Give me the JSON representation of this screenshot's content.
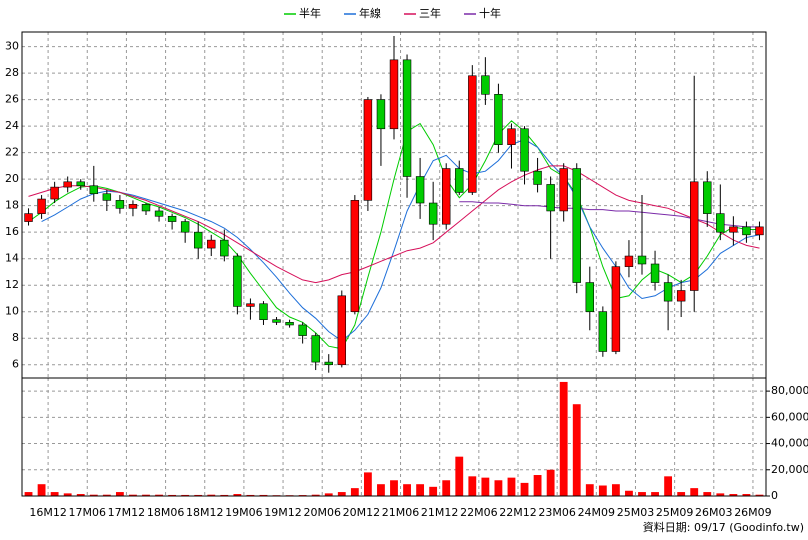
{
  "chart_data": {
    "type": "candlestick",
    "ylim": [
      5.0,
      31.1
    ],
    "yticks": [
      6,
      8,
      10,
      12,
      14,
      16,
      18,
      20,
      22,
      24,
      26,
      28,
      30
    ],
    "xlim": [
      -0.5,
      56.5
    ],
    "xticks": [
      {
        "value": 1.5,
        "label": "16M12"
      },
      {
        "value": 4.5,
        "label": "17M06"
      },
      {
        "value": 7.5,
        "label": "17M12"
      },
      {
        "value": 10.5,
        "label": "18M06"
      },
      {
        "value": 13.5,
        "label": "18M12"
      },
      {
        "value": 16.5,
        "label": "19M06"
      },
      {
        "value": 19.5,
        "label": "19M12"
      },
      {
        "value": 22.5,
        "label": "20M06"
      },
      {
        "value": 25.5,
        "label": "20M12"
      },
      {
        "value": 28.5,
        "label": "21M06"
      },
      {
        "value": 31.5,
        "label": "21M12"
      },
      {
        "value": 34.5,
        "label": "22M06"
      },
      {
        "value": 37.5,
        "label": "22M12"
      },
      {
        "value": 40.5,
        "label": "23M06"
      },
      {
        "value": 43.5,
        "label": "24M09"
      },
      {
        "value": 46.5,
        "label": "25M03"
      },
      {
        "value": 49.5,
        "label": "25M09"
      },
      {
        "value": 52.5,
        "label": "26M03"
      },
      {
        "value": 55.5,
        "label": "26M09"
      }
    ],
    "grid": true,
    "up_color": "#ff0000",
    "down_color": "#00cc00",
    "candles": [
      [
        16.8,
        17.8,
        16.5,
        17.4
      ],
      [
        17.4,
        18.8,
        17.0,
        18.5
      ],
      [
        18.5,
        19.8,
        18.2,
        19.4
      ],
      [
        19.4,
        20.2,
        19.0,
        19.8
      ],
      [
        19.8,
        20.0,
        19.2,
        19.5
      ],
      [
        19.5,
        21.0,
        18.3,
        18.9
      ],
      [
        18.9,
        19.2,
        17.6,
        18.4
      ],
      [
        18.4,
        18.8,
        17.4,
        17.8
      ],
      [
        17.8,
        18.4,
        17.2,
        18.1
      ],
      [
        18.1,
        18.2,
        17.3,
        17.6
      ],
      [
        17.6,
        17.9,
        16.8,
        17.2
      ],
      [
        17.2,
        17.4,
        16.2,
        16.8
      ],
      [
        16.8,
        17.0,
        15.2,
        16.0
      ],
      [
        16.0,
        16.8,
        14.0,
        14.8
      ],
      [
        14.8,
        15.8,
        14.2,
        15.4
      ],
      [
        15.4,
        16.2,
        13.8,
        14.2
      ],
      [
        14.2,
        14.4,
        9.8,
        10.4
      ],
      [
        10.4,
        11.0,
        9.4,
        10.6
      ],
      [
        10.6,
        10.8,
        9.0,
        9.4
      ],
      [
        9.4,
        9.6,
        9.0,
        9.2
      ],
      [
        9.2,
        9.4,
        8.8,
        9.0
      ],
      [
        9.0,
        9.2,
        7.6,
        8.2
      ],
      [
        8.2,
        8.4,
        5.6,
        6.2
      ],
      [
        6.2,
        6.8,
        5.4,
        6.0
      ],
      [
        6.0,
        11.6,
        5.8,
        11.2
      ],
      [
        10.0,
        18.8,
        9.8,
        18.4
      ],
      [
        18.4,
        26.2,
        17.6,
        26.0
      ],
      [
        26.0,
        26.4,
        21.0,
        23.8
      ],
      [
        23.8,
        30.8,
        23.0,
        29.0
      ],
      [
        29.0,
        29.4,
        18.6,
        20.2
      ],
      [
        20.2,
        21.6,
        17.0,
        18.2
      ],
      [
        18.2,
        19.8,
        15.4,
        16.6
      ],
      [
        16.6,
        21.2,
        16.2,
        20.8
      ],
      [
        20.8,
        21.4,
        18.8,
        19.0
      ],
      [
        19.0,
        28.6,
        18.8,
        27.8
      ],
      [
        27.8,
        29.2,
        25.6,
        26.4
      ],
      [
        26.4,
        27.2,
        22.0,
        22.6
      ],
      [
        22.6,
        24.2,
        20.8,
        23.8
      ],
      [
        23.8,
        24.0,
        19.6,
        20.6
      ],
      [
        20.6,
        21.6,
        19.0,
        19.6
      ],
      [
        19.6,
        20.2,
        14.0,
        17.6
      ],
      [
        17.6,
        21.2,
        16.8,
        20.8
      ],
      [
        20.8,
        21.2,
        11.4,
        12.2
      ],
      [
        12.2,
        13.4,
        8.6,
        10.0
      ],
      [
        10.0,
        10.4,
        6.6,
        7.0
      ],
      [
        7.0,
        13.8,
        6.8,
        13.4
      ],
      [
        13.4,
        15.4,
        12.6,
        14.2
      ],
      [
        14.2,
        18.8,
        12.8,
        13.6
      ],
      [
        13.6,
        14.6,
        11.6,
        12.2
      ],
      [
        12.2,
        12.8,
        8.6,
        10.8
      ],
      [
        10.8,
        12.4,
        9.6,
        11.6
      ],
      [
        11.6,
        27.8,
        10.0,
        19.8
      ],
      [
        19.8,
        20.6,
        16.4,
        17.4
      ],
      [
        17.4,
        19.6,
        15.4,
        16.0
      ],
      [
        16.0,
        17.2,
        15.0,
        16.4
      ],
      [
        16.4,
        16.8,
        15.2,
        15.8
      ],
      [
        15.8,
        16.8,
        15.4,
        16.4
      ]
    ],
    "lines": [
      {
        "name": "半年",
        "color": "#00cc00",
        "values": [
          16.8,
          17.5,
          18.3,
          18.9,
          19.4,
          19.5,
          19.3,
          19.0,
          18.6,
          18.2,
          17.9,
          17.5,
          17.1,
          16.6,
          16.0,
          15.4,
          14.3,
          12.9,
          11.6,
          10.3,
          9.6,
          9.2,
          8.4,
          7.4,
          7.2,
          9.0,
          12.6,
          16.0,
          20.0,
          23.6,
          24.2,
          22.6,
          20.0,
          18.6,
          19.6,
          21.4,
          23.4,
          24.4,
          23.6,
          22.4,
          20.8,
          20.2,
          18.8,
          16.4,
          13.4,
          11.0,
          11.2,
          12.4,
          13.2,
          12.8,
          12.2,
          12.8,
          14.2,
          15.8,
          16.4,
          16.2,
          16.2
        ]
      },
      {
        "name": "年線",
        "color": "#1e6fd9",
        "values": [
          null,
          16.8,
          17.3,
          17.9,
          18.5,
          18.9,
          19.1,
          19.0,
          18.8,
          18.5,
          18.2,
          17.9,
          17.6,
          17.2,
          16.8,
          16.3,
          15.6,
          14.7,
          13.7,
          12.6,
          11.4,
          10.3,
          9.5,
          8.5,
          7.8,
          8.6,
          9.8,
          11.8,
          14.6,
          17.6,
          19.6,
          21.4,
          21.8,
          20.8,
          20.4,
          20.6,
          21.4,
          22.6,
          23.0,
          22.4,
          21.2,
          20.2,
          18.6,
          16.4,
          14.8,
          13.4,
          11.8,
          11.0,
          11.2,
          11.8,
          12.2,
          12.4,
          13.2,
          14.4,
          15.0,
          15.6,
          15.8
        ]
      },
      {
        "name": "三年",
        "color": "#d6105a",
        "values": [
          18.7,
          19.0,
          19.3,
          19.5,
          19.5,
          19.4,
          19.2,
          19.0,
          18.7,
          18.4,
          18.0,
          17.6,
          17.2,
          16.8,
          16.3,
          15.8,
          15.2,
          14.6,
          14.0,
          13.4,
          12.9,
          12.4,
          12.2,
          12.4,
          12.8,
          13.0,
          13.4,
          13.8,
          14.2,
          14.6,
          14.8,
          15.2,
          16.0,
          16.8,
          17.6,
          18.4,
          19.2,
          19.8,
          20.3,
          20.7,
          21.0,
          21.0,
          20.6,
          20.0,
          19.4,
          18.8,
          18.4,
          18.2,
          18.0,
          17.8,
          17.4,
          17.0,
          16.6,
          16.0,
          15.4,
          15.0,
          14.8
        ]
      },
      {
        "name": "十年",
        "color": "#7a2aa8",
        "values": [
          null,
          null,
          null,
          null,
          null,
          null,
          null,
          null,
          null,
          null,
          null,
          null,
          null,
          null,
          null,
          null,
          null,
          null,
          null,
          null,
          null,
          null,
          null,
          null,
          null,
          null,
          null,
          null,
          null,
          null,
          null,
          null,
          null,
          18.3,
          18.3,
          18.2,
          18.2,
          18.1,
          18.0,
          18.0,
          17.9,
          17.8,
          17.8,
          17.7,
          17.7,
          17.6,
          17.6,
          17.5,
          17.4,
          17.3,
          17.2,
          17.0,
          16.8,
          16.6,
          16.5,
          16.4,
          16.4
        ]
      }
    ],
    "volume": {
      "color": "#ff0000",
      "ylim": [
        0,
        90000
      ],
      "yticks": [
        0,
        {
          "value": 20000,
          "label": "20,000"
        },
        {
          "value": 40000,
          "label": "40,000"
        },
        {
          "value": 60000,
          "label": "60,000"
        },
        {
          "value": 80000,
          "label": "80,000"
        }
      ],
      "values": [
        3000,
        9000,
        3000,
        2000,
        1500,
        1000,
        1000,
        3000,
        1000,
        1000,
        1000,
        800,
        800,
        800,
        1000,
        800,
        1500,
        800,
        800,
        600,
        600,
        700,
        1000,
        2000,
        3000,
        6000,
        18000,
        9000,
        12000,
        9000,
        9000,
        7000,
        12000,
        30000,
        15000,
        14000,
        12000,
        14000,
        10000,
        16000,
        20000,
        87000,
        70000,
        9000,
        8000,
        9000,
        4000,
        3000,
        3000,
        15000,
        3000,
        6000,
        3000,
        2000,
        1500,
        1500,
        1000
      ]
    },
    "note": "資料日期: 09/17  (Goodinfo.tw)"
  }
}
